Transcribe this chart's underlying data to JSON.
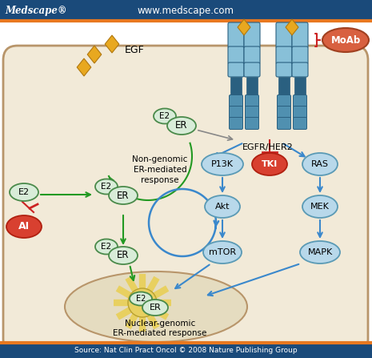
{
  "title_bar_color": "#1a4a7a",
  "title_left": "Medscape®",
  "title_center": "www.medscape.com",
  "footer": "Source: Nat Clin Pract Oncol © 2008 Nature Publishing Group",
  "bg_white": "#ffffff",
  "cell_fill": "#f2ead8",
  "nucleus_fill": "#e5dcc0",
  "cell_border": "#b8956a",
  "node_blue_fill": "#b8d8ea",
  "node_blue_border": "#5a9ab5",
  "node_er_fill": "#d8ecd8",
  "node_er_border": "#4a8a4a",
  "node_red_fill": "#d84030",
  "node_red_border": "#b02010",
  "node_moab_fill": "#d86040",
  "node_moab_border": "#a04020",
  "arrow_blue": "#3a88cc",
  "arrow_green": "#229922",
  "arrow_red": "#cc2222",
  "arrow_gray": "#888888",
  "egf_color": "#e8a820",
  "egf_border": "#b07810",
  "receptor_fill": "#88c0d8",
  "receptor_dark": "#2a6080",
  "receptor_mid": "#5090b0",
  "orange_line": "#e87820",
  "star_color": "#e8d060",
  "star_border": "#b8a030"
}
